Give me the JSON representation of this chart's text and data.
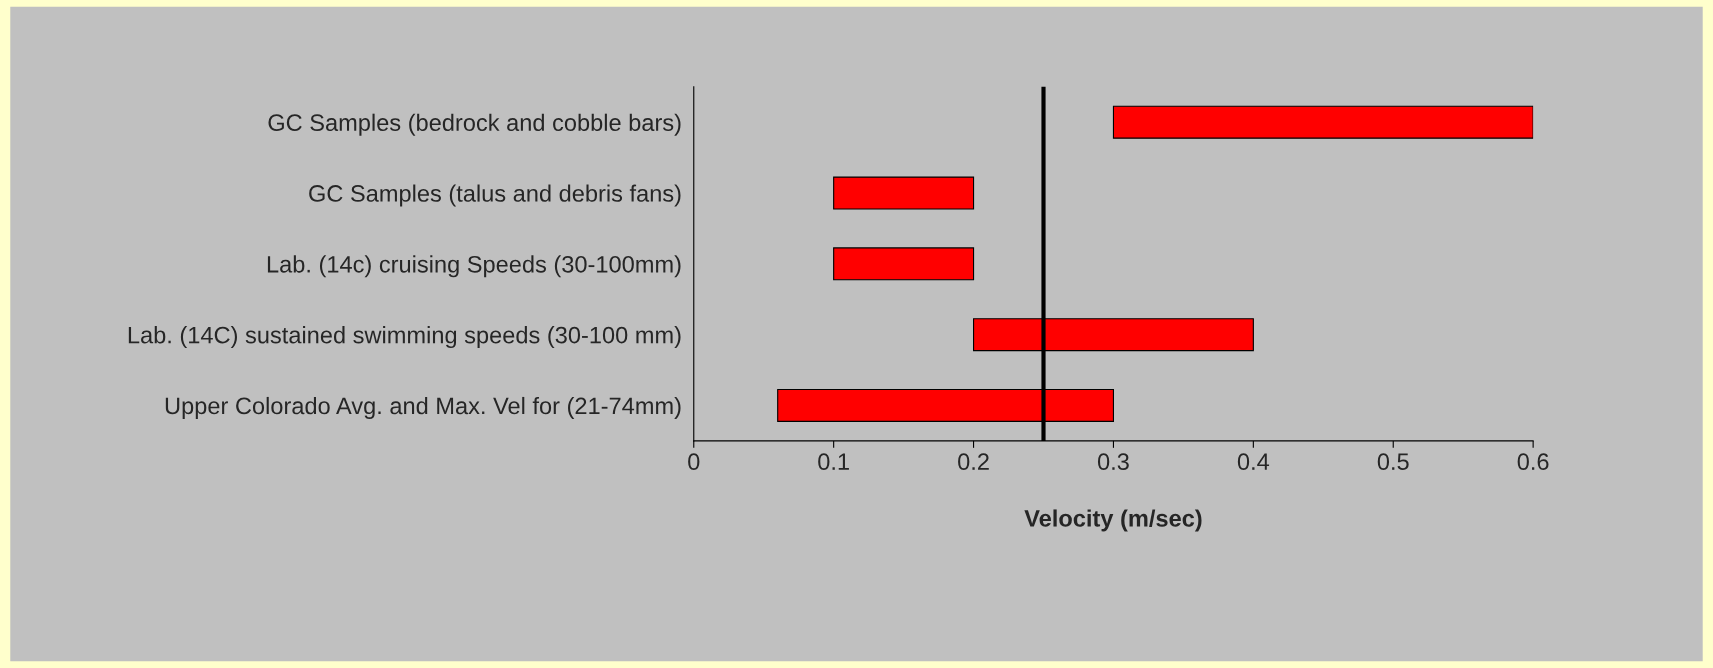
{
  "chart_data": {
    "type": "bar",
    "orientation": "horizontal",
    "xlabel": "Velocity (m/sec)",
    "categories": [
      "GC Samples (bedrock and cobble bars)",
      "GC Samples (talus and debris fans)",
      "Lab. (14c) cruising Speeds (30-100mm)",
      "Lab. (14C) sustained swimming speeds (30-100 mm)",
      "Upper Colorado Avg. and Max. Vel for (21-74mm)"
    ],
    "base": [
      0.3,
      0.1,
      0.1,
      0.2,
      0.06
    ],
    "values": [
      0.3,
      0.1,
      0.1,
      0.2,
      0.24
    ],
    "color": "#ff0000",
    "xlim": [
      0,
      0.6
    ],
    "xticks": [
      0,
      0.1,
      0.2,
      0.3,
      0.4,
      0.5,
      0.6
    ],
    "ref_lines": [
      {
        "axis": "x",
        "value": 0.25,
        "color": "#000000",
        "line_style": "solid"
      }
    ],
    "grid": false,
    "legend": false
  }
}
